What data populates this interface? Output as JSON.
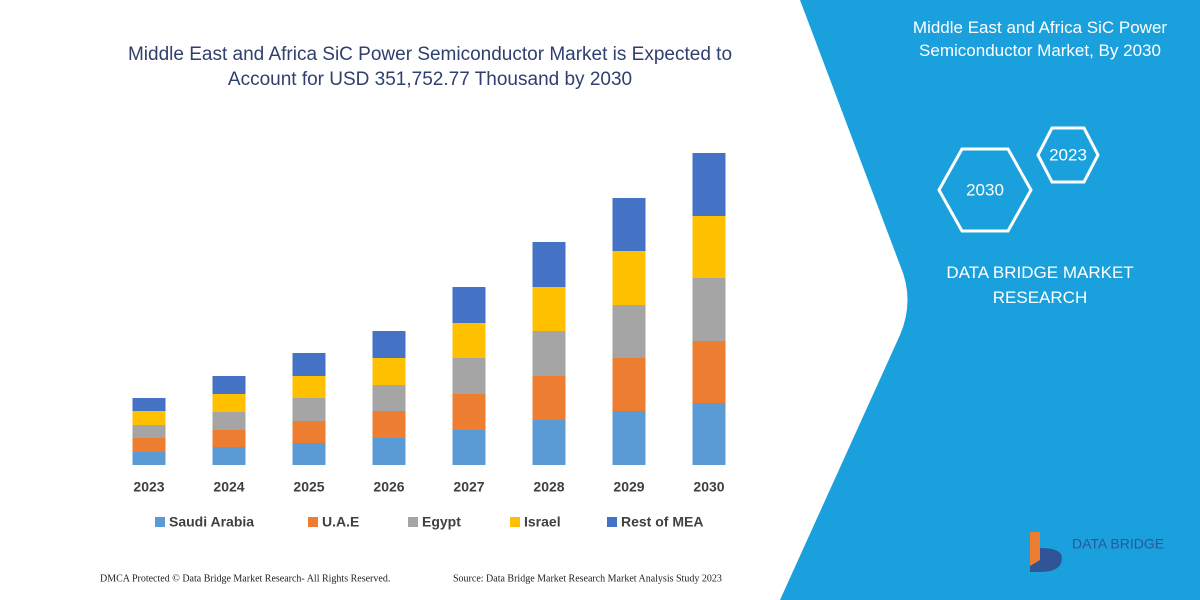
{
  "chart_data": {
    "type": "bar",
    "stacked": true,
    "title": "Middle East and Africa SiC Power Semiconductor Market is Expected to Account for USD 351,752.77 Thousand by 2030",
    "categories": [
      "2023",
      "2024",
      "2025",
      "2026",
      "2027",
      "2028",
      "2029",
      "2030"
    ],
    "series": [
      {
        "name": "Saudi Arabia",
        "color": "#5b9bd5",
        "values": [
          13,
          18,
          22,
          27,
          35,
          45,
          54,
          62
        ]
      },
      {
        "name": "U.A.E",
        "color": "#ed7d31",
        "values": [
          14,
          17,
          22,
          27,
          36,
          44,
          53,
          62
        ]
      },
      {
        "name": "Egypt",
        "color": "#a5a5a5",
        "values": [
          13,
          18,
          23,
          26,
          36,
          45,
          53,
          63
        ]
      },
      {
        "name": "Israel",
        "color": "#ffc000",
        "values": [
          14,
          18,
          22,
          27,
          35,
          44,
          54,
          62
        ]
      },
      {
        "name": "Rest of MEA",
        "color": "#4472c4",
        "values": [
          13,
          18,
          23,
          27,
          36,
          45,
          53,
          63
        ]
      }
    ],
    "ylim": [
      0,
      320
    ],
    "grid": false
  },
  "panel": {
    "title": "Middle East and Africa SiC Power Semiconductor Market, By 2030",
    "badges": [
      "2023",
      "2030"
    ],
    "brand": "DATA BRIDGE MARKET RESEARCH",
    "logo": "DATA BRIDGE"
  },
  "footer": {
    "left": "DMCA Protected © Data Bridge Market Research-  All Rights Reserved.",
    "right": "Source: Data Bridge Market Research  Market Analysis Study 2023"
  }
}
